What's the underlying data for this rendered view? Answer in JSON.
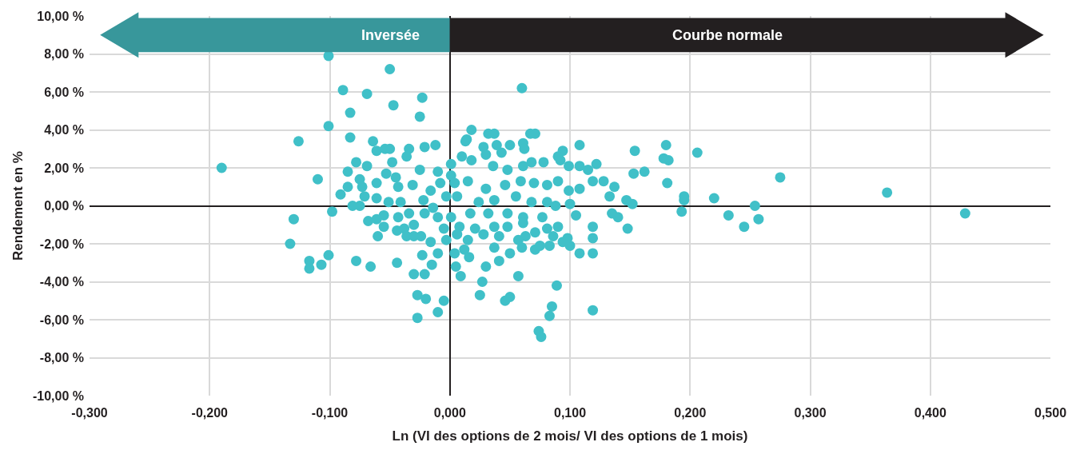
{
  "chart_data": {
    "type": "scatter",
    "xlabel": "Ln (VI des options de 2 mois/ VI des options de 1 mois)",
    "ylabel": "Rendement en %",
    "annotations": [
      "Inversée",
      "Courbe normale"
    ],
    "xlim": [
      -0.3,
      0.5
    ],
    "xticks": [
      {
        "value": -0.3,
        "label": "-0,300"
      },
      {
        "value": -0.2,
        "label": "-0,200"
      },
      {
        "value": -0.1,
        "label": "-0,100"
      },
      {
        "value": 0,
        "label": "0,000"
      },
      {
        "value": 0.1,
        "label": "0,100"
      },
      {
        "value": 0.2,
        "label": "0,200"
      },
      {
        "value": 0.3,
        "label": "0,300"
      },
      {
        "value": 0.4,
        "label": "0,400"
      },
      {
        "value": 0.5,
        "label": "0,500"
      }
    ],
    "ylim": [
      -10,
      10
    ],
    "yticks": [
      {
        "value": -10,
        "label": "-10,00 %"
      },
      {
        "value": -8,
        "label": "-8,00 %"
      },
      {
        "value": -6,
        "label": "-6,00 %"
      },
      {
        "value": -4,
        "label": "-4,00 %"
      },
      {
        "value": -2,
        "label": "-2,00 %"
      },
      {
        "value": 0,
        "label": "0,00 %"
      },
      {
        "value": 2,
        "label": "2,00 %"
      },
      {
        "value": 4,
        "label": "4,00 %"
      },
      {
        "value": 6,
        "label": "6,00 %"
      },
      {
        "value": 8,
        "label": "8,00 %"
      },
      {
        "value": 10,
        "label": "10,00 %"
      }
    ],
    "grid": true,
    "marker": "circle",
    "series": [
      {
        "color": "#40c0c8",
        "x": [
          -0.19,
          -0.101,
          -0.089,
          -0.05,
          -0.069,
          -0.047,
          -0.023,
          -0.083,
          -0.025,
          -0.101,
          -0.126,
          -0.083,
          -0.11,
          -0.098,
          -0.13,
          -0.133,
          -0.117,
          -0.117,
          -0.107,
          -0.101,
          -0.078,
          -0.066,
          -0.044,
          -0.027,
          -0.027,
          -0.02,
          -0.005,
          -0.01,
          0.06,
          0.009,
          0.025,
          0.027,
          0.05,
          0.046,
          0.057,
          0.089,
          0.085,
          0.083,
          0.074,
          0.076,
          0.119,
          0.429,
          0.364,
          0.275,
          0.254,
          0.257,
          0.245,
          0.232,
          0.22,
          0.206,
          0.195,
          0.195,
          0.193,
          0.18,
          0.182,
          0.178,
          0.181,
          0.162,
          0.153,
          0.154,
          0.148,
          0.152,
          0.147,
          0.14,
          0.135,
          0.133,
          0.137,
          0.128,
          0.122,
          0.119,
          0.119,
          0.119,
          0.108,
          0.1,
          0.098,
          0.105,
          0.108,
          0.094,
          0.09,
          0.067,
          0.061,
          0.018,
          0.037,
          0.014,
          0.032,
          -0.064,
          -0.061,
          -0.054,
          -0.05,
          -0.034,
          -0.036,
          -0.021,
          -0.012,
          -0.048,
          -0.078,
          -0.069,
          -0.085,
          -0.075,
          -0.053,
          -0.045,
          -0.025,
          -0.01,
          -0.085,
          -0.073,
          -0.061,
          -0.043,
          -0.031,
          -0.091,
          -0.071,
          -0.061,
          -0.051,
          -0.041,
          -0.081,
          -0.075,
          -0.055,
          -0.043,
          -0.034,
          -0.068,
          -0.061,
          -0.055,
          -0.03,
          -0.044,
          -0.038,
          -0.06,
          -0.036,
          -0.03,
          -0.024,
          -0.016,
          -0.023,
          -0.015,
          -0.03,
          -0.021,
          -0.01,
          0.004,
          0.005,
          -0.008,
          -0.003,
          -0.014,
          -0.01,
          -0.005,
          -0.016,
          -0.022,
          -0.021,
          -0.003,
          0.001,
          0.013,
          0.071,
          0.028,
          0.039,
          0.05,
          0.062,
          0.03,
          0.043,
          0.01,
          0.001,
          0.018,
          0.036,
          0.048,
          0.061,
          0.068,
          0.078,
          0.092,
          0.099,
          0.108,
          0.115,
          0.119,
          0.108,
          0.099,
          0.09,
          0.081,
          0.07,
          0.059,
          0.046,
          0.03,
          0.015,
          0.004,
          0.006,
          0.024,
          0.037,
          0.055,
          0.068,
          0.081,
          0.088,
          0.1,
          0.077,
          0.061,
          0.048,
          0.032,
          0.017,
          0.001,
          0.008,
          0.021,
          0.037,
          0.048,
          0.061,
          0.081,
          0.09,
          0.086,
          0.071,
          0.063,
          0.057,
          0.041,
          0.028,
          0.015,
          0.006,
          0.012,
          0.037,
          0.06,
          0.071,
          0.075,
          0.083,
          0.094,
          0.016,
          0.041,
          0.05,
          0.03
        ],
        "values": [
          2.0,
          7.9,
          6.1,
          7.2,
          5.9,
          5.3,
          5.7,
          4.9,
          4.7,
          4.2,
          3.4,
          3.6,
          1.4,
          -0.3,
          -0.7,
          -2.0,
          -2.9,
          -3.3,
          -3.1,
          -2.6,
          -2.9,
          -3.2,
          -3.0,
          -4.7,
          -5.9,
          -4.9,
          -5.0,
          -5.6,
          6.2,
          -3.7,
          -4.7,
          -4.0,
          -4.8,
          -5.0,
          -3.7,
          -4.2,
          -5.3,
          -5.8,
          -6.6,
          -6.9,
          -5.5,
          -0.4,
          0.7,
          1.5,
          0.0,
          -0.7,
          -1.1,
          -0.5,
          0.4,
          2.8,
          0.5,
          0.3,
          -0.3,
          3.2,
          2.4,
          2.5,
          1.2,
          1.8,
          1.7,
          2.9,
          -1.2,
          0.1,
          0.3,
          -0.6,
          -0.4,
          0.5,
          1.0,
          1.3,
          2.2,
          -1.7,
          -1.1,
          -2.5,
          -2.5,
          -2.1,
          -1.7,
          -0.5,
          3.2,
          2.9,
          2.6,
          3.8,
          3.3,
          4.0,
          3.8,
          3.5,
          3.8,
          3.4,
          2.9,
          3.0,
          3.0,
          3.0,
          2.6,
          3.1,
          3.2,
          2.3,
          2.3,
          2.1,
          1.8,
          1.4,
          1.7,
          1.5,
          1.9,
          1.8,
          1.0,
          1.0,
          1.2,
          1.0,
          1.1,
          0.6,
          0.5,
          0.4,
          0.2,
          0.2,
          0.0,
          0.0,
          -0.5,
          -0.6,
          -0.4,
          -0.8,
          -0.7,
          -1.1,
          -1.0,
          -1.3,
          -1.2,
          -1.6,
          -1.6,
          -1.6,
          -1.6,
          -1.9,
          -2.6,
          -3.1,
          -3.6,
          -3.6,
          -2.5,
          -2.5,
          -3.2,
          1.2,
          0.5,
          -0.1,
          -0.6,
          -1.2,
          0.8,
          0.3,
          -0.4,
          -1.8,
          1.6,
          3.4,
          3.8,
          3.1,
          3.2,
          3.2,
          3.0,
          2.7,
          2.8,
          2.6,
          2.2,
          2.4,
          2.1,
          1.9,
          2.1,
          2.3,
          2.3,
          2.4,
          2.1,
          2.1,
          1.9,
          1.3,
          0.9,
          0.8,
          1.3,
          1.1,
          1.2,
          1.3,
          1.1,
          0.9,
          1.3,
          1.2,
          0.5,
          0.2,
          0.3,
          0.5,
          0.2,
          0.2,
          0.0,
          0.1,
          -0.6,
          -0.6,
          -0.4,
          -0.4,
          -0.4,
          -0.6,
          -1.1,
          -1.2,
          -1.1,
          -1.1,
          -0.9,
          -1.2,
          -1.1,
          -1.6,
          -1.4,
          -1.6,
          -1.8,
          -1.6,
          -1.5,
          -1.8,
          -1.5,
          -2.3,
          -2.2,
          -2.2,
          -2.3,
          -2.1,
          -2.1,
          -1.9,
          -2.7,
          -2.9,
          -2.5,
          -3.2
        ]
      }
    ]
  }
}
